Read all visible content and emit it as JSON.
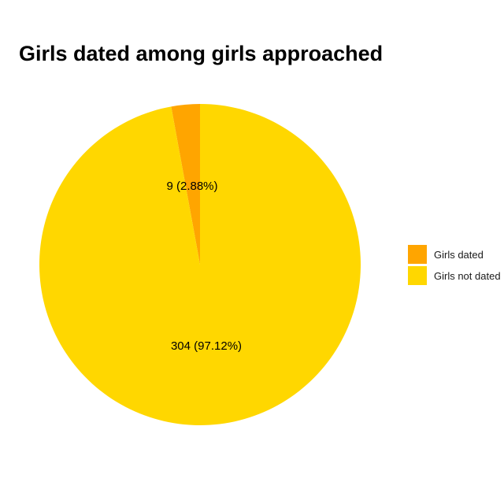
{
  "chart_data": {
    "type": "pie",
    "title": "Girls dated among girls approached",
    "categories": [
      "Girls dated",
      "Girls not dated"
    ],
    "values": [
      9,
      304
    ],
    "labels": [
      "9 (2.88%)",
      "304 (97.12%)"
    ],
    "colors": [
      "#FFA500",
      "#FFD700"
    ],
    "legend": {
      "placement": "right",
      "entries": [
        "Girls dated",
        "Girls not dated"
      ]
    }
  }
}
